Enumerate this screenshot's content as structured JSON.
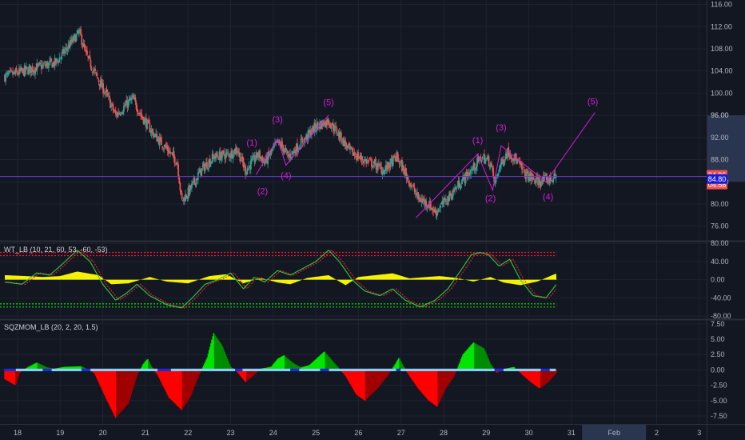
{
  "colors": {
    "background": "#131722",
    "grid": "#1f2330",
    "separator": "#2a2e39",
    "up_candle": "#26a69a",
    "down_candle": "#ef5350",
    "wave": "#d61ed6",
    "price_line": "#6a3ccf",
    "wt_upper": "#e8192c",
    "wt_lower": "#16c60c",
    "wt_histogram": "#ffff00",
    "sqz_up_bright": "#00e600",
    "sqz_up_dark": "#008c00",
    "sqz_down_bright": "#ff0000",
    "sqz_down_dark": "#a00000",
    "sqz_zero_on": "#1a2bd8",
    "sqz_zero_off": "#87cefa"
  },
  "price_tags": [
    {
      "value": "84.96",
      "color": "#ef5350"
    },
    {
      "value": "04:58",
      "color": "#ef5350"
    },
    {
      "value": "84.80",
      "color": "#1a1ad8"
    }
  ],
  "price_highlight": {
    "from": 84.0,
    "to": 96.0,
    "label": "96.00"
  },
  "panes": {
    "wt_label": "WT_LB (10, 21, 60, 53, -60, -53)",
    "sqz_label": "SQZMOM_LB (20, 2, 20, 1.5)"
  },
  "x_axis": {
    "labels": [
      "18",
      "19",
      "20",
      "21",
      "22",
      "23",
      "24",
      "25",
      "26",
      "27",
      "28",
      "29",
      "30",
      "31",
      "Feb",
      "2",
      "3"
    ],
    "highlight": "Feb"
  },
  "chart_data": [
    {
      "type": "candlestick",
      "name": "price",
      "ylim": [
        73.5,
        116.8
      ],
      "ytick_labels": [
        "76.00",
        "80.00",
        "84.00",
        "88.00",
        "92.00",
        "96.00",
        "100.00",
        "104.00",
        "108.00",
        "112.00",
        "116.00"
      ],
      "ytick_values": [
        76,
        80,
        84,
        88,
        92,
        96,
        100,
        104,
        108,
        112,
        116
      ],
      "close_path": [
        {
          "day": 17.7,
          "v": 103.0
        },
        {
          "day": 18.4,
          "v": 104.5
        },
        {
          "day": 18.9,
          "v": 105.5
        },
        {
          "day": 19.2,
          "v": 108.5
        },
        {
          "day": 19.45,
          "v": 111.0
        },
        {
          "day": 19.6,
          "v": 107.0
        },
        {
          "day": 19.85,
          "v": 103.0
        },
        {
          "day": 20.1,
          "v": 99.5
        },
        {
          "day": 20.3,
          "v": 96.0
        },
        {
          "day": 20.5,
          "v": 97.5
        },
        {
          "day": 20.7,
          "v": 99.0
        },
        {
          "day": 20.9,
          "v": 96.0
        },
        {
          "day": 21.2,
          "v": 92.5
        },
        {
          "day": 21.5,
          "v": 90.0
        },
        {
          "day": 21.75,
          "v": 87.5
        },
        {
          "day": 21.85,
          "v": 80.5
        },
        {
          "day": 22.0,
          "v": 82.0
        },
        {
          "day": 22.3,
          "v": 86.0
        },
        {
          "day": 22.6,
          "v": 88.5
        },
        {
          "day": 23.0,
          "v": 89.0
        },
        {
          "day": 23.15,
          "v": 90.0
        },
        {
          "day": 23.35,
          "v": 86.0
        },
        {
          "day": 23.5,
          "v": 87.5
        },
        {
          "day": 23.65,
          "v": 89.0
        },
        {
          "day": 23.8,
          "v": 87.5
        },
        {
          "day": 24.1,
          "v": 91.0
        },
        {
          "day": 24.2,
          "v": 90.5
        },
        {
          "day": 24.35,
          "v": 88.5
        },
        {
          "day": 24.6,
          "v": 90.5
        },
        {
          "day": 25.0,
          "v": 94.0
        },
        {
          "day": 25.3,
          "v": 95.0
        },
        {
          "day": 25.5,
          "v": 93.0
        },
        {
          "day": 25.8,
          "v": 89.5
        },
        {
          "day": 26.1,
          "v": 88.0
        },
        {
          "day": 26.4,
          "v": 87.0
        },
        {
          "day": 26.6,
          "v": 86.0
        },
        {
          "day": 26.9,
          "v": 88.5
        },
        {
          "day": 27.1,
          "v": 85.5
        },
        {
          "day": 27.4,
          "v": 81.0
        },
        {
          "day": 27.65,
          "v": 80.0
        },
        {
          "day": 27.8,
          "v": 78.5
        },
        {
          "day": 28.1,
          "v": 81.0
        },
        {
          "day": 28.4,
          "v": 84.0
        },
        {
          "day": 28.7,
          "v": 86.5
        },
        {
          "day": 28.9,
          "v": 88.5
        },
        {
          "day": 29.1,
          "v": 87.5
        },
        {
          "day": 29.2,
          "v": 83.5
        },
        {
          "day": 29.3,
          "v": 86.5
        },
        {
          "day": 29.5,
          "v": 89.5
        },
        {
          "day": 29.7,
          "v": 88.0
        },
        {
          "day": 29.9,
          "v": 85.5
        },
        {
          "day": 30.2,
          "v": 84.0
        },
        {
          "day": 30.5,
          "v": 84.5
        },
        {
          "day": 30.65,
          "v": 84.9
        }
      ],
      "current_price": 84.96,
      "bid_price": 84.8
    },
    {
      "type": "line",
      "name": "WT_LB",
      "ylim": [
        -85,
        82
      ],
      "ytick_labels": [
        "80.00",
        "40.00",
        "0.00",
        "-40.00",
        "-80.00"
      ],
      "ytick_values": [
        80,
        40,
        0,
        -40,
        -80
      ],
      "levels": [
        60,
        53,
        -53,
        -60
      ],
      "wt1_path": [
        {
          "day": 17.7,
          "v": -5
        },
        {
          "day": 18.1,
          "v": -10
        },
        {
          "day": 18.45,
          "v": 15
        },
        {
          "day": 18.75,
          "v": 10
        },
        {
          "day": 19.0,
          "v": 30
        },
        {
          "day": 19.4,
          "v": 65
        },
        {
          "day": 19.7,
          "v": 40
        },
        {
          "day": 20.0,
          "v": -10
        },
        {
          "day": 20.3,
          "v": -45
        },
        {
          "day": 20.55,
          "v": -30
        },
        {
          "day": 20.8,
          "v": -10
        },
        {
          "day": 21.1,
          "v": -35
        },
        {
          "day": 21.5,
          "v": -55
        },
        {
          "day": 21.85,
          "v": -62
        },
        {
          "day": 22.1,
          "v": -40
        },
        {
          "day": 22.4,
          "v": -10
        },
        {
          "day": 22.7,
          "v": 0
        },
        {
          "day": 23.0,
          "v": 15
        },
        {
          "day": 23.3,
          "v": -20
        },
        {
          "day": 23.55,
          "v": 5
        },
        {
          "day": 23.8,
          "v": -5
        },
        {
          "day": 24.1,
          "v": 20
        },
        {
          "day": 24.4,
          "v": 10
        },
        {
          "day": 24.7,
          "v": 25
        },
        {
          "day": 25.0,
          "v": 40
        },
        {
          "day": 25.3,
          "v": 65
        },
        {
          "day": 25.55,
          "v": 40
        },
        {
          "day": 25.85,
          "v": 0
        },
        {
          "day": 26.15,
          "v": -25
        },
        {
          "day": 26.5,
          "v": -35
        },
        {
          "day": 26.8,
          "v": -20
        },
        {
          "day": 27.1,
          "v": -45
        },
        {
          "day": 27.45,
          "v": -60
        },
        {
          "day": 27.8,
          "v": -45
        },
        {
          "day": 28.1,
          "v": -20
        },
        {
          "day": 28.4,
          "v": 20
        },
        {
          "day": 28.65,
          "v": 55
        },
        {
          "day": 28.85,
          "v": 60
        },
        {
          "day": 29.05,
          "v": 55
        },
        {
          "day": 29.3,
          "v": 30
        },
        {
          "day": 29.55,
          "v": 45
        },
        {
          "day": 29.8,
          "v": 0
        },
        {
          "day": 30.1,
          "v": -35
        },
        {
          "day": 30.4,
          "v": -40
        },
        {
          "day": 30.65,
          "v": -10
        }
      ],
      "histogram_path": [
        {
          "day": 17.7,
          "v": 10
        },
        {
          "day": 18.2,
          "v": 8
        },
        {
          "day": 18.6,
          "v": 6
        },
        {
          "day": 19.0,
          "v": 8
        },
        {
          "day": 19.4,
          "v": 18
        },
        {
          "day": 19.9,
          "v": 10
        },
        {
          "day": 20.2,
          "v": -10
        },
        {
          "day": 20.6,
          "v": -8
        },
        {
          "day": 21.1,
          "v": 6
        },
        {
          "day": 21.5,
          "v": -4
        },
        {
          "day": 22.0,
          "v": -8
        },
        {
          "day": 22.5,
          "v": 8
        },
        {
          "day": 22.9,
          "v": 12
        },
        {
          "day": 23.3,
          "v": -8
        },
        {
          "day": 23.7,
          "v": 4
        },
        {
          "day": 24.1,
          "v": -6
        },
        {
          "day": 24.4,
          "v": -10
        },
        {
          "day": 24.8,
          "v": 4
        },
        {
          "day": 25.3,
          "v": 10
        },
        {
          "day": 25.7,
          "v": -12
        },
        {
          "day": 26.0,
          "v": 6
        },
        {
          "day": 26.4,
          "v": 10
        },
        {
          "day": 26.8,
          "v": 14
        },
        {
          "day": 27.2,
          "v": 3
        },
        {
          "day": 27.6,
          "v": 6
        },
        {
          "day": 27.9,
          "v": 8
        },
        {
          "day": 28.3,
          "v": 4
        },
        {
          "day": 28.7,
          "v": -4
        },
        {
          "day": 29.1,
          "v": 6
        },
        {
          "day": 29.4,
          "v": -6
        },
        {
          "day": 29.8,
          "v": -12
        },
        {
          "day": 30.2,
          "v": -4
        },
        {
          "day": 30.65,
          "v": 14
        }
      ]
    },
    {
      "type": "bar",
      "name": "SQZMOM_LB",
      "ylim": [
        -8.8,
        8.0
      ],
      "ytick_labels": [
        "7.50",
        "5.00",
        "2.50",
        "0.00",
        "-2.50",
        "-5.00",
        "-7.50"
      ],
      "ytick_values": [
        7.5,
        5,
        2.5,
        0,
        -2.5,
        -5,
        -7.5
      ],
      "momentum_path": [
        {
          "day": 17.7,
          "v": -1.5
        },
        {
          "day": 17.95,
          "v": -2.5
        },
        {
          "day": 18.05,
          "v": -0.5
        },
        {
          "day": 18.2,
          "v": 0.3
        },
        {
          "day": 18.45,
          "v": 1.2
        },
        {
          "day": 18.7,
          "v": 0.4
        },
        {
          "day": 18.85,
          "v": 0.2
        },
        {
          "day": 19.1,
          "v": 0.5
        },
        {
          "day": 19.5,
          "v": 0.6
        },
        {
          "day": 19.8,
          "v": -0.5
        },
        {
          "day": 20.1,
          "v": -5.0
        },
        {
          "day": 20.3,
          "v": -7.8
        },
        {
          "day": 20.6,
          "v": -5.5
        },
        {
          "day": 20.8,
          "v": -1.0
        },
        {
          "day": 20.95,
          "v": 1.0
        },
        {
          "day": 21.05,
          "v": 1.8
        },
        {
          "day": 21.15,
          "v": 0.5
        },
        {
          "day": 21.3,
          "v": -1.0
        },
        {
          "day": 21.55,
          "v": -4.5
        },
        {
          "day": 21.85,
          "v": -6.5
        },
        {
          "day": 22.05,
          "v": -4.5
        },
        {
          "day": 22.25,
          "v": -1.0
        },
        {
          "day": 22.45,
          "v": 2.0
        },
        {
          "day": 22.6,
          "v": 6.0
        },
        {
          "day": 22.8,
          "v": 4.0
        },
        {
          "day": 23.0,
          "v": 0.5
        },
        {
          "day": 23.15,
          "v": -0.3
        },
        {
          "day": 23.35,
          "v": -2.0
        },
        {
          "day": 23.55,
          "v": -0.8
        },
        {
          "day": 23.7,
          "v": 0.2
        },
        {
          "day": 23.95,
          "v": 0.5
        },
        {
          "day": 24.1,
          "v": 1.8
        },
        {
          "day": 24.25,
          "v": 2.4
        },
        {
          "day": 24.45,
          "v": 1.2
        },
        {
          "day": 24.65,
          "v": 0.4
        },
        {
          "day": 24.85,
          "v": 0.8
        },
        {
          "day": 25.2,
          "v": 3.0
        },
        {
          "day": 25.45,
          "v": 1.0
        },
        {
          "day": 25.7,
          "v": -1.0
        },
        {
          "day": 25.95,
          "v": -4.0
        },
        {
          "day": 26.15,
          "v": -5.0
        },
        {
          "day": 26.45,
          "v": -3.0
        },
        {
          "day": 26.7,
          "v": -0.8
        },
        {
          "day": 26.85,
          "v": 0.8
        },
        {
          "day": 26.95,
          "v": 2.0
        },
        {
          "day": 27.15,
          "v": -0.5
        },
        {
          "day": 27.4,
          "v": -3.0
        },
        {
          "day": 27.65,
          "v": -5.0
        },
        {
          "day": 27.85,
          "v": -6.0
        },
        {
          "day": 28.05,
          "v": -3.0
        },
        {
          "day": 28.25,
          "v": -1.0
        },
        {
          "day": 28.45,
          "v": 2.5
        },
        {
          "day": 28.7,
          "v": 4.5
        },
        {
          "day": 28.95,
          "v": 3.5
        },
        {
          "day": 29.1,
          "v": 1.0
        },
        {
          "day": 29.25,
          "v": -0.5
        },
        {
          "day": 29.45,
          "v": 0.2
        },
        {
          "day": 29.65,
          "v": 0.5
        },
        {
          "day": 29.85,
          "v": -0.8
        },
        {
          "day": 30.05,
          "v": -2.0
        },
        {
          "day": 30.25,
          "v": -3.0
        },
        {
          "day": 30.45,
          "v": -2.0
        },
        {
          "day": 30.65,
          "v": -0.5
        }
      ],
      "squeeze_on_days": [
        [
          17.7,
          17.95
        ],
        [
          18.6,
          18.8
        ],
        [
          19.5,
          19.7
        ],
        [
          21.3,
          21.6
        ],
        [
          23.1,
          23.3
        ],
        [
          24.4,
          24.6
        ],
        [
          25.1,
          25.3
        ],
        [
          26.9,
          27.0
        ],
        [
          29.2,
          29.4
        ],
        [
          30.3,
          30.5
        ]
      ]
    }
  ],
  "annotations": [
    {
      "label": "(1)",
      "day": 23.5,
      "price": 90.5
    },
    {
      "label": "(2)",
      "day": 23.75,
      "price": 81.8
    },
    {
      "label": "(3)",
      "day": 24.1,
      "price": 94.7
    },
    {
      "label": "(4)",
      "day": 24.3,
      "price": 84.6
    },
    {
      "label": "(5)",
      "day": 25.3,
      "price": 97.8
    },
    {
      "label": "(1)",
      "day": 28.8,
      "price": 91.0
    },
    {
      "label": "(3)",
      "day": 29.35,
      "price": 93.3
    },
    {
      "label": "(2)",
      "day": 29.1,
      "price": 80.5
    },
    {
      "label": "(4)",
      "day": 30.45,
      "price": 80.8
    },
    {
      "label": "(5)",
      "day": 31.5,
      "price": 98.0
    }
  ],
  "wave_lines": [
    [
      {
        "day": 27.35,
        "price": 77.5
      },
      {
        "day": 28.8,
        "price": 89.0
      },
      {
        "day": 29.15,
        "price": 82.5
      },
      {
        "day": 29.35,
        "price": 90.5
      },
      {
        "day": 30.4,
        "price": 84.0
      },
      {
        "day": 31.55,
        "price": 96.5
      }
    ],
    [
      {
        "day": 23.6,
        "price": 85.3
      },
      {
        "day": 24.1,
        "price": 91.8
      },
      {
        "day": 24.3,
        "price": 87.0
      },
      {
        "day": 25.3,
        "price": 96.0
      }
    ]
  ]
}
